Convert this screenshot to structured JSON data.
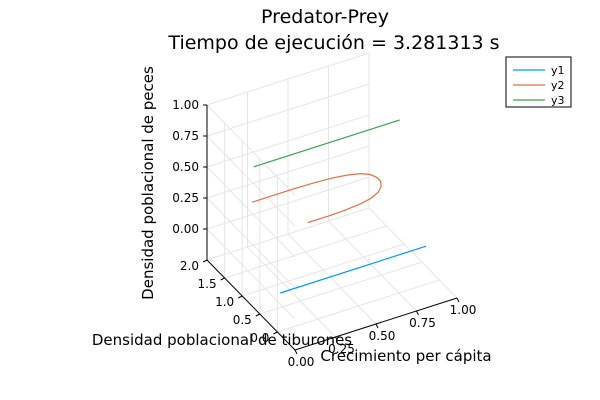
{
  "chart_data": {
    "type": "line",
    "title_line1": "Predator-Prey",
    "title_line2": "Tiempo de ejecución = 3.281313 s",
    "xlabel": "Crecimiento per cápita",
    "ylabel": "Densidad poblacional de tiburones",
    "zlabel": "Densidad poblacional de peces",
    "xlim": [
      0,
      1
    ],
    "ylim": [
      -0.5,
      2.0
    ],
    "zlim": [
      -0.25,
      1.0
    ],
    "x_ticks": [
      "0.00",
      "0.25",
      "0.50",
      "0.75",
      "1.00"
    ],
    "y_ticks": [
      "0.0",
      "0.5",
      "1.0",
      "1.5",
      "2.0"
    ],
    "z_ticks": [
      "0.00",
      "0.25",
      "0.50",
      "0.75",
      "1.00"
    ],
    "legend_position": "top-right",
    "grid": true,
    "series": [
      {
        "name": "y1",
        "color": "#009AFA",
        "points": [
          [
            0.05,
            0.15,
            0.0
          ],
          [
            0.95,
            0.15,
            0.0
          ]
        ]
      },
      {
        "name": "y2",
        "color": "#E36F47",
        "points": [
          [
            0.05,
            0.95,
            0.5
          ],
          [
            0.18,
            0.95,
            0.5
          ],
          [
            0.3,
            0.95,
            0.5
          ],
          [
            0.42,
            0.94,
            0.5
          ],
          [
            0.53,
            0.92,
            0.5
          ],
          [
            0.62,
            0.88,
            0.5
          ],
          [
            0.69,
            0.82,
            0.5
          ],
          [
            0.73,
            0.74,
            0.5
          ],
          [
            0.75,
            0.63,
            0.5
          ],
          [
            0.75,
            0.52,
            0.5
          ],
          [
            0.73,
            0.41,
            0.5
          ],
          [
            0.69,
            0.31,
            0.5
          ],
          [
            0.63,
            0.23,
            0.5
          ],
          [
            0.55,
            0.18,
            0.5
          ],
          [
            0.45,
            0.15,
            0.5
          ],
          [
            0.34,
            0.14,
            0.5
          ],
          [
            0.22,
            0.14,
            0.5
          ]
        ]
      },
      {
        "name": "y3",
        "color": "#3DA44D",
        "points": [
          [
            0.05,
            0.9,
            0.8
          ],
          [
            0.95,
            0.9,
            0.8
          ]
        ]
      }
    ]
  }
}
